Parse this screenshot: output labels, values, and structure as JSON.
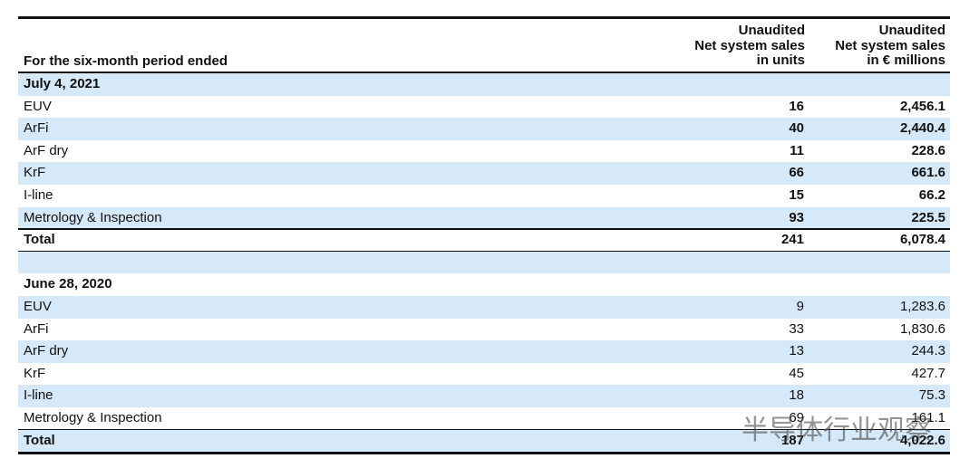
{
  "header": {
    "period_label": "For the six-month period ended",
    "units_label": [
      "Unaudited",
      "Net system sales",
      "in units"
    ],
    "eur_label": [
      "Unaudited",
      "Net system sales",
      "in € millions"
    ]
  },
  "sections": [
    {
      "title": "July 4, 2021",
      "rows": [
        [
          "EUV",
          "16",
          "2,456.1"
        ],
        [
          "ArFi",
          "40",
          "2,440.4"
        ],
        [
          "ArF dry",
          "11",
          "228.6"
        ],
        [
          "KrF",
          "66",
          "661.6"
        ],
        [
          "I-line",
          "15",
          "66.2"
        ],
        [
          "Metrology & Inspection",
          "93",
          "225.5"
        ]
      ],
      "total": [
        "Total",
        "241",
        "6,078.4"
      ]
    },
    {
      "title": "June 28, 2020",
      "rows": [
        [
          "EUV",
          "9",
          "1,283.6"
        ],
        [
          "ArFi",
          "33",
          "1,830.6"
        ],
        [
          "ArF dry",
          "13",
          "244.3"
        ],
        [
          "KrF",
          "45",
          "427.7"
        ],
        [
          "I-line",
          "18",
          "75.3"
        ],
        [
          "Metrology & Inspection",
          "69",
          "161.1"
        ]
      ],
      "total": [
        "Total",
        "187",
        "4,022.6"
      ]
    }
  ],
  "watermark": "半导体行业观察"
}
